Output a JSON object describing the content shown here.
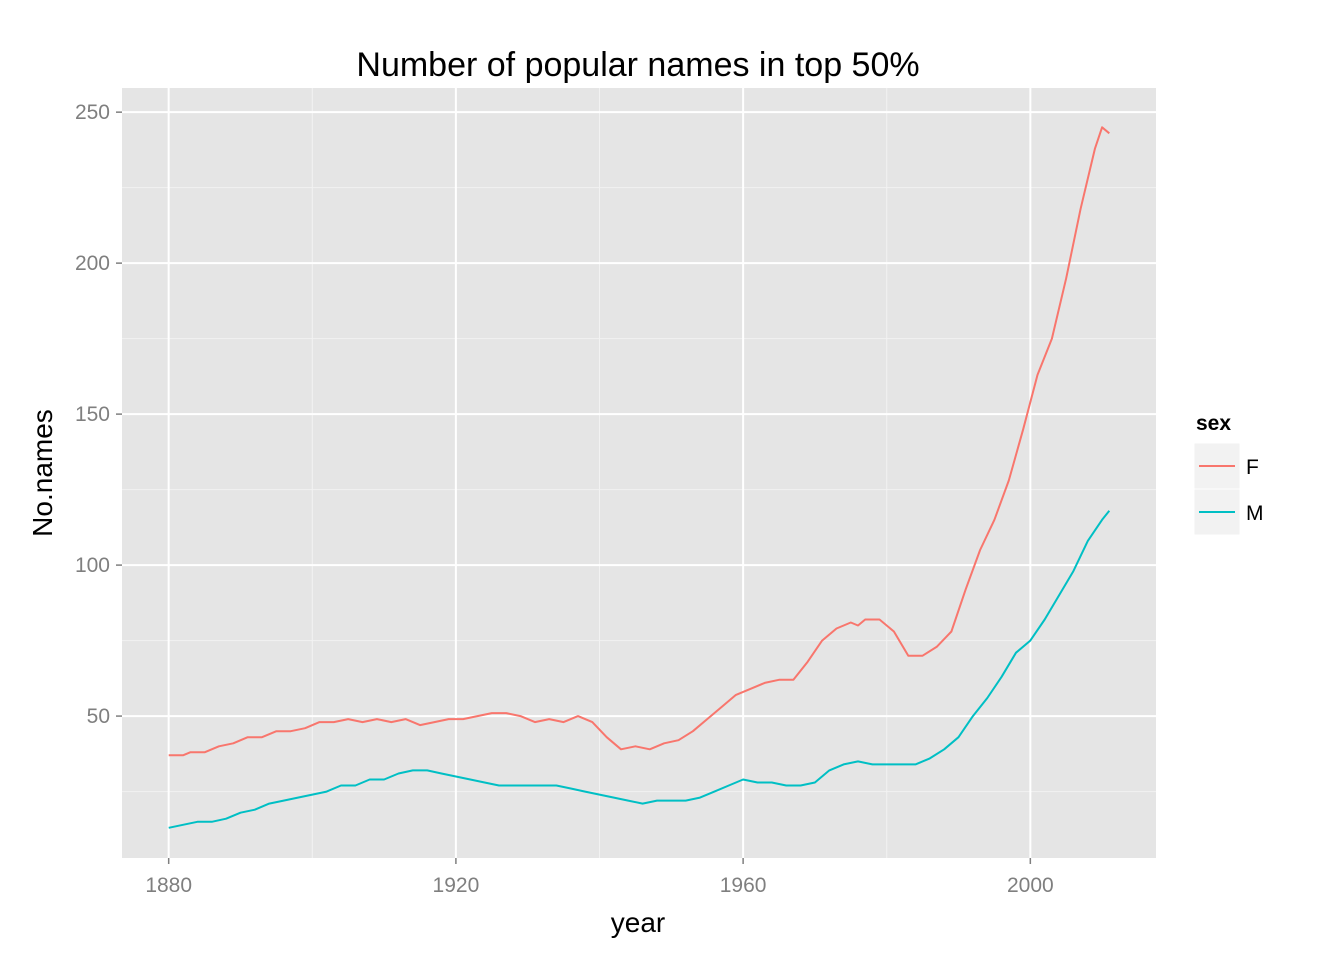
{
  "chart_data": {
    "type": "line",
    "title": "Number of popular names in top 50%",
    "xlabel": "year",
    "ylabel": "No.names",
    "xlim": [
      1873.5,
      2017.5
    ],
    "ylim": [
      3,
      258
    ],
    "x_ticks": [
      1880,
      1920,
      1960,
      2000
    ],
    "y_ticks": [
      50,
      100,
      150,
      200,
      250
    ],
    "grid": true,
    "legend": {
      "title": "sex",
      "position": "right"
    },
    "series": [
      {
        "name": "F",
        "color": "#F8766D",
        "points": [
          [
            1880,
            37
          ],
          [
            1882,
            37
          ],
          [
            1883,
            38
          ],
          [
            1885,
            38
          ],
          [
            1887,
            40
          ],
          [
            1889,
            41
          ],
          [
            1891,
            43
          ],
          [
            1893,
            43
          ],
          [
            1895,
            45
          ],
          [
            1897,
            45
          ],
          [
            1899,
            46
          ],
          [
            1901,
            48
          ],
          [
            1903,
            48
          ],
          [
            1905,
            49
          ],
          [
            1907,
            48
          ],
          [
            1909,
            49
          ],
          [
            1911,
            48
          ],
          [
            1913,
            49
          ],
          [
            1915,
            47
          ],
          [
            1917,
            48
          ],
          [
            1919,
            49
          ],
          [
            1921,
            49
          ],
          [
            1923,
            50
          ],
          [
            1925,
            51
          ],
          [
            1927,
            51
          ],
          [
            1929,
            50
          ],
          [
            1931,
            48
          ],
          [
            1933,
            49
          ],
          [
            1935,
            48
          ],
          [
            1937,
            50
          ],
          [
            1939,
            48
          ],
          [
            1941,
            43
          ],
          [
            1943,
            39
          ],
          [
            1945,
            40
          ],
          [
            1947,
            39
          ],
          [
            1949,
            41
          ],
          [
            1951,
            42
          ],
          [
            1953,
            45
          ],
          [
            1955,
            49
          ],
          [
            1957,
            53
          ],
          [
            1959,
            57
          ],
          [
            1961,
            59
          ],
          [
            1963,
            61
          ],
          [
            1965,
            62
          ],
          [
            1967,
            62
          ],
          [
            1969,
            68
          ],
          [
            1971,
            75
          ],
          [
            1973,
            79
          ],
          [
            1975,
            81
          ],
          [
            1976,
            80
          ],
          [
            1977,
            82
          ],
          [
            1979,
            82
          ],
          [
            1981,
            78
          ],
          [
            1983,
            70
          ],
          [
            1985,
            70
          ],
          [
            1987,
            73
          ],
          [
            1989,
            78
          ],
          [
            1991,
            92
          ],
          [
            1993,
            105
          ],
          [
            1995,
            115
          ],
          [
            1997,
            128
          ],
          [
            1999,
            145
          ],
          [
            2001,
            163
          ],
          [
            2003,
            175
          ],
          [
            2005,
            195
          ],
          [
            2007,
            218
          ],
          [
            2009,
            238
          ],
          [
            2010,
            245
          ],
          [
            2011,
            243
          ]
        ]
      },
      {
        "name": "M",
        "color": "#00BFC4",
        "points": [
          [
            1880,
            13
          ],
          [
            1882,
            14
          ],
          [
            1884,
            15
          ],
          [
            1886,
            15
          ],
          [
            1888,
            16
          ],
          [
            1890,
            18
          ],
          [
            1892,
            19
          ],
          [
            1894,
            21
          ],
          [
            1896,
            22
          ],
          [
            1898,
            23
          ],
          [
            1900,
            24
          ],
          [
            1902,
            25
          ],
          [
            1904,
            27
          ],
          [
            1906,
            27
          ],
          [
            1908,
            29
          ],
          [
            1910,
            29
          ],
          [
            1912,
            31
          ],
          [
            1914,
            32
          ],
          [
            1916,
            32
          ],
          [
            1918,
            31
          ],
          [
            1920,
            30
          ],
          [
            1922,
            29
          ],
          [
            1924,
            28
          ],
          [
            1926,
            27
          ],
          [
            1928,
            27
          ],
          [
            1930,
            27
          ],
          [
            1932,
            27
          ],
          [
            1934,
            27
          ],
          [
            1936,
            26
          ],
          [
            1938,
            25
          ],
          [
            1940,
            24
          ],
          [
            1942,
            23
          ],
          [
            1944,
            22
          ],
          [
            1946,
            21
          ],
          [
            1948,
            22
          ],
          [
            1950,
            22
          ],
          [
            1952,
            22
          ],
          [
            1954,
            23
          ],
          [
            1956,
            25
          ],
          [
            1958,
            27
          ],
          [
            1960,
            29
          ],
          [
            1962,
            28
          ],
          [
            1964,
            28
          ],
          [
            1966,
            27
          ],
          [
            1968,
            27
          ],
          [
            1970,
            28
          ],
          [
            1972,
            32
          ],
          [
            1974,
            34
          ],
          [
            1976,
            35
          ],
          [
            1978,
            34
          ],
          [
            1980,
            34
          ],
          [
            1982,
            34
          ],
          [
            1984,
            34
          ],
          [
            1986,
            36
          ],
          [
            1988,
            39
          ],
          [
            1990,
            43
          ],
          [
            1992,
            50
          ],
          [
            1994,
            56
          ],
          [
            1996,
            63
          ],
          [
            1998,
            71
          ],
          [
            2000,
            75
          ],
          [
            2002,
            82
          ],
          [
            2004,
            90
          ],
          [
            2006,
            98
          ],
          [
            2008,
            108
          ],
          [
            2010,
            115
          ],
          [
            2011,
            118
          ]
        ]
      }
    ]
  }
}
